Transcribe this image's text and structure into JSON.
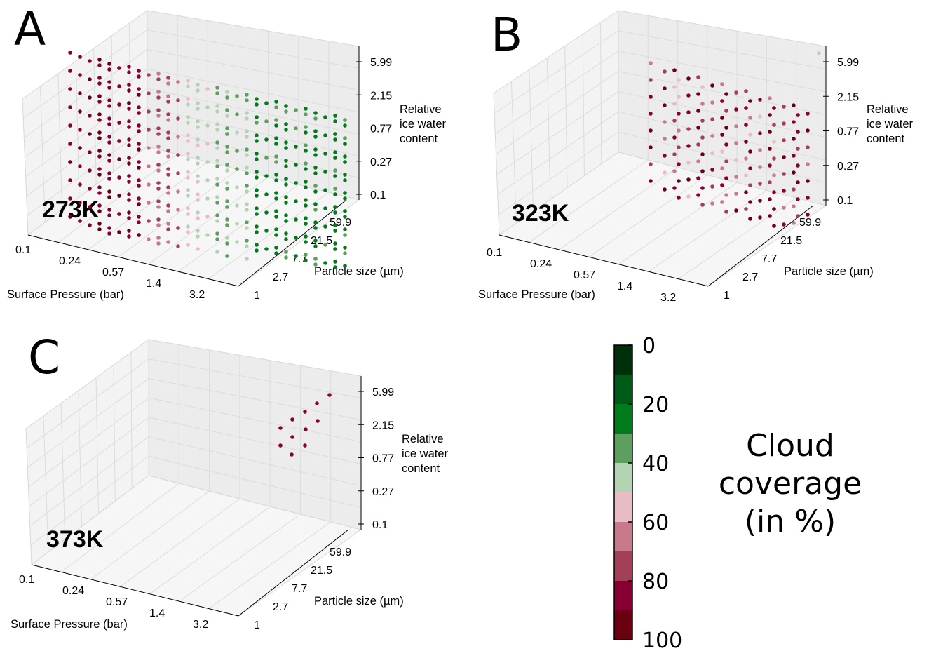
{
  "chart_data": [
    {
      "type": "scatter",
      "panel": "A",
      "temperature_label": "273K",
      "xlabel": "Surface Pressure (bar)",
      "ylabel": "Particle size (µm)",
      "zlabel": [
        "Relative",
        "ice water",
        "content"
      ],
      "x_ticks": [
        "0.1",
        "0.24",
        "0.57",
        "1.4",
        "3.2"
      ],
      "y_ticks": [
        "1",
        "2.7",
        "7.7",
        "21.5",
        "59.9"
      ],
      "z_ticks": [
        "0.1",
        "0.27",
        "0.77",
        "2.15",
        "5.99"
      ],
      "coverage_summary": "Cloud coverage grid over pressure × particle size × ice water content; green (low coverage, 0–40%) dominates at large particle sizes and high pressure, red/pink (60–100%) at small pressure and small particles"
    },
    {
      "type": "scatter",
      "panel": "B",
      "temperature_label": "323K",
      "xlabel": "Surface Pressure (bar)",
      "ylabel": "Particle size (µm)",
      "zlabel": [
        "Relative",
        "ice water",
        "content"
      ],
      "x_ticks": [
        "0.1",
        "0.24",
        "0.57",
        "1.4",
        "3.2"
      ],
      "y_ticks": [
        "1",
        "2.7",
        "7.7",
        "21.5",
        "59.9"
      ],
      "z_ticks": [
        "0.1",
        "0.27",
        "0.77",
        "2.15",
        "5.99"
      ]
    },
    {
      "type": "scatter",
      "panel": "C",
      "temperature_label": "373K",
      "xlabel": "Surface Pressure (bar)",
      "ylabel": "Particle size (µm)",
      "zlabel": [
        "Relative",
        "ice water",
        "content"
      ],
      "x_ticks": [
        "0.1",
        "0.24",
        "0.57",
        "1.4",
        "3.2"
      ],
      "y_ticks": [
        "1",
        "2.7",
        "7.7",
        "21.5",
        "59.9"
      ],
      "z_ticks": [
        "0.1",
        "0.27",
        "0.77",
        "2.15",
        "5.99"
      ]
    }
  ],
  "colorbar": {
    "title": [
      "Cloud",
      "coverage",
      "(in %)"
    ],
    "ticks": [
      "0",
      "20",
      "40",
      "60",
      "80",
      "100"
    ],
    "colors": [
      "#00300a",
      "#005a17",
      "#007a1b",
      "#5e9e5f",
      "#b4d3b3",
      "#e8bcc5",
      "#c67a8b",
      "#a34059",
      "#860034",
      "#6b0010"
    ]
  }
}
